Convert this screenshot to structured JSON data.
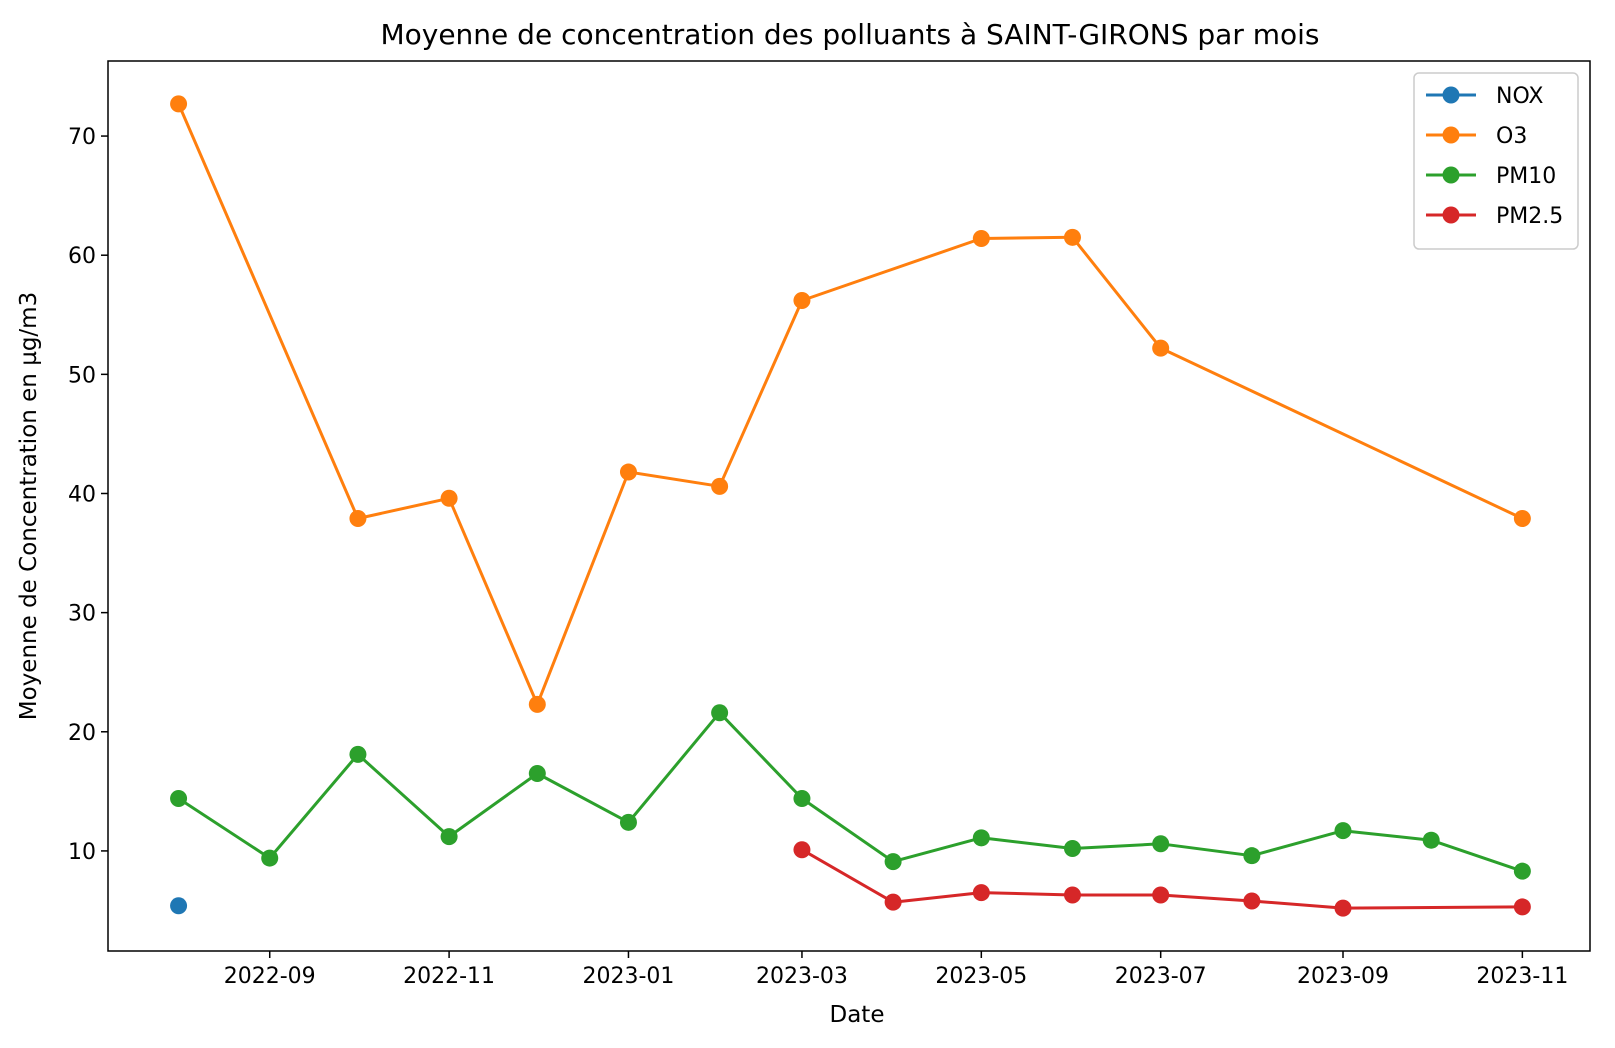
{
  "chart_data": {
    "type": "line",
    "title": "Moyenne de concentration des polluants à SAINT-GIRONS par mois",
    "xlabel": "Date",
    "ylabel": "Moyenne de Concentration en µg/m3",
    "x_ticks": [
      "2022-09",
      "2022-11",
      "2023-01",
      "2023-03",
      "2023-05",
      "2023-07",
      "2023-09",
      "2023-11"
    ],
    "y_ticks": [
      10,
      20,
      30,
      40,
      50,
      60,
      70
    ],
    "xlim": [
      "2022-07-08",
      "2023-11-24"
    ],
    "ylim": [
      1.6,
      76.3
    ],
    "grid": false,
    "legend_position": "top-right",
    "series": [
      {
        "name": "NOX",
        "color": "#1f77b4",
        "x": [
          "2022-08-01"
        ],
        "values": [
          5.4
        ]
      },
      {
        "name": "O3",
        "color": "#ff7f0e",
        "x": [
          "2022-08-01",
          "2022-10-01",
          "2022-11-01",
          "2022-12-01",
          "2023-01-01",
          "2023-02-01",
          "2023-03-01",
          "2023-05-01",
          "2023-06-01",
          "2023-07-01",
          "2023-11-01"
        ],
        "values": [
          72.7,
          37.9,
          39.6,
          22.3,
          41.8,
          40.6,
          56.2,
          61.4,
          61.5,
          52.2,
          37.9
        ]
      },
      {
        "name": "PM10",
        "color": "#2ca02c",
        "x": [
          "2022-08-01",
          "2022-09-01",
          "2022-10-01",
          "2022-11-01",
          "2022-12-01",
          "2023-01-01",
          "2023-02-01",
          "2023-03-01",
          "2023-04-01",
          "2023-05-01",
          "2023-06-01",
          "2023-07-01",
          "2023-08-01",
          "2023-09-01",
          "2023-10-01",
          "2023-11-01"
        ],
        "values": [
          14.4,
          9.4,
          18.1,
          11.2,
          16.5,
          12.4,
          21.6,
          14.4,
          9.1,
          11.1,
          10.2,
          10.6,
          9.6,
          11.7,
          10.9,
          8.3
        ]
      },
      {
        "name": "PM2.5",
        "color": "#d62728",
        "x": [
          "2023-03-01",
          "2023-04-01",
          "2023-05-01",
          "2023-06-01",
          "2023-07-01",
          "2023-08-01",
          "2023-09-01",
          "2023-11-01"
        ],
        "values": [
          10.1,
          5.7,
          6.5,
          6.3,
          6.3,
          5.8,
          5.2,
          5.3
        ]
      }
    ]
  }
}
